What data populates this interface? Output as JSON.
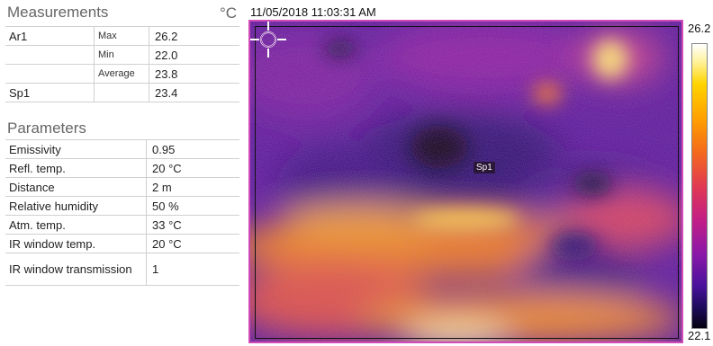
{
  "measurements": {
    "title": "Measurements",
    "unit": "°C",
    "rows": [
      {
        "name": "Ar1",
        "stat": "Max",
        "value": "26.2"
      },
      {
        "name": "",
        "stat": "Min",
        "value": "22.0"
      },
      {
        "name": "",
        "stat": "Average",
        "value": "23.8"
      },
      {
        "name": "Sp1",
        "stat": "",
        "value": "23.4"
      }
    ]
  },
  "parameters": {
    "title": "Parameters",
    "rows": [
      {
        "label": "Emissivity",
        "value": "0.95"
      },
      {
        "label": "Refl. temp.",
        "value": "20 °C"
      },
      {
        "label": "Distance",
        "value": "2 m"
      },
      {
        "label": "Relative humidity",
        "value": "50 %"
      },
      {
        "label": "Atm. temp.",
        "value": "33 °C"
      },
      {
        "label": "IR window temp.",
        "value": "20 °C"
      },
      {
        "label": "IR window transmission",
        "value": "1"
      }
    ]
  },
  "image": {
    "timestamp": "11/05/2018 11:03:31 AM",
    "spot_label": "Sp1",
    "scale_max": "26.2",
    "scale_min": "22.1",
    "palette": "iron",
    "frame_color": "#d04bb8"
  }
}
